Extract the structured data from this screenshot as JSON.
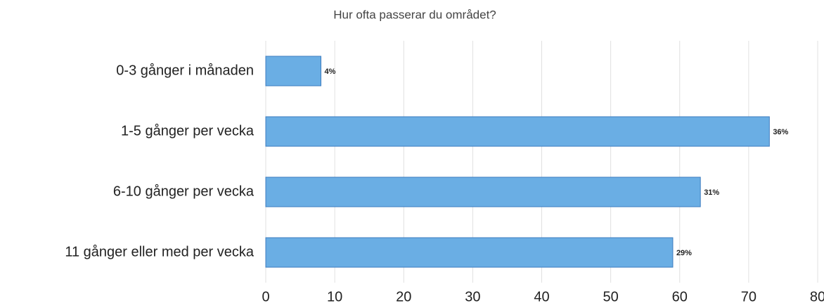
{
  "chart_data": {
    "type": "hbar",
    "title": "Hur ofta passerar du området?",
    "categories": [
      "0-3 gånger i månaden",
      "1-5 gånger per vecka",
      "6-10 gånger per vecka",
      "11 gånger eller med per vecka"
    ],
    "values": [
      8,
      73,
      63,
      59
    ],
    "value_labels": [
      "4%",
      "36%",
      "31%",
      "29%"
    ],
    "color": "#6aaee4",
    "xlim": [
      0,
      80
    ],
    "xticks": [
      0,
      10,
      20,
      30,
      40,
      50,
      60,
      70,
      80
    ],
    "grid": true
  }
}
